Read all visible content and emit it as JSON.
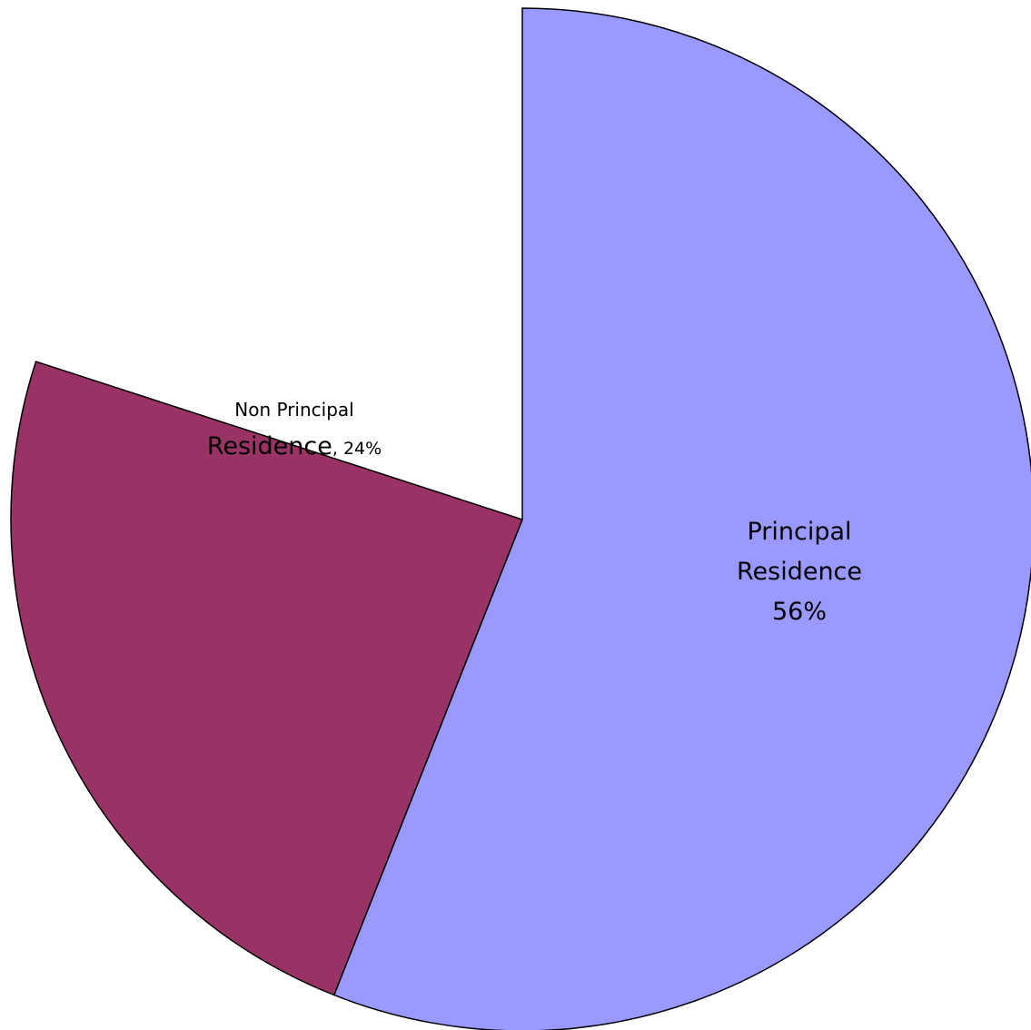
{
  "chart_data": {
    "type": "pie",
    "categories": [
      "Principal Residence",
      "Non Principal Residence"
    ],
    "values": [
      56,
      24
    ],
    "value_labels": [
      "56%",
      ", 24%"
    ],
    "colors": [
      "#9999ff",
      "#993366"
    ]
  }
}
